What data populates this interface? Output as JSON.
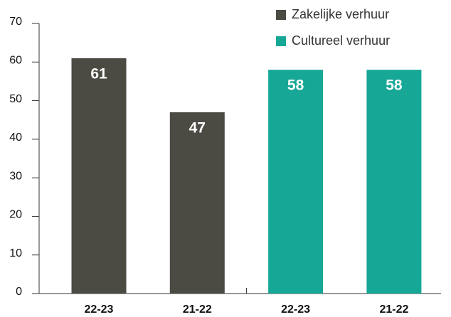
{
  "chart_data": {
    "type": "bar",
    "categories": [
      "22-23",
      "21-22",
      "22-23",
      "21-22"
    ],
    "series": [
      {
        "name": "Zakelijke verhuur",
        "color": "#4b4a43",
        "values": [
          61,
          47,
          null,
          null
        ]
      },
      {
        "name": "Cultureel verhuur",
        "color": "#17a796",
        "values": [
          null,
          null,
          58,
          58
        ]
      }
    ],
    "ylim": [
      0,
      70
    ],
    "yticks": [
      0,
      10,
      20,
      30,
      40,
      50,
      60,
      70
    ],
    "grid": false,
    "legend": "top-right"
  }
}
